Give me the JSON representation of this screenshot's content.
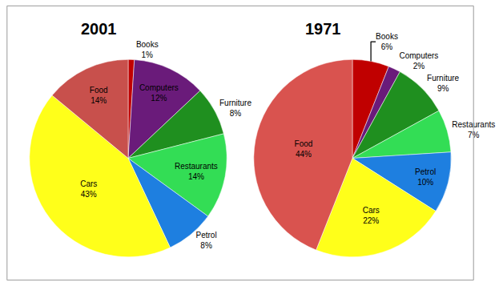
{
  "chart_data": [
    {
      "type": "pie",
      "title": "2001",
      "categories": [
        "Books",
        "Computers",
        "Furniture",
        "Restaurants",
        "Petrol",
        "Cars",
        "Food"
      ],
      "values": [
        1,
        12,
        8,
        14,
        8,
        43,
        14
      ],
      "value_labels": [
        "1%",
        "12%",
        "8%",
        "14%",
        "8%",
        "43%",
        "14%"
      ],
      "colors": [
        "#c00000",
        "#6a1b7a",
        "#1f8f1f",
        "#33dd55",
        "#1e7fe0",
        "#ffff1a",
        "#c8504c"
      ],
      "data_labels": true
    },
    {
      "type": "pie",
      "title": "1971",
      "categories": [
        "Books",
        "Computers",
        "Furniture",
        "Restaurants",
        "Petrol",
        "Cars",
        "Food"
      ],
      "values": [
        6,
        2,
        9,
        7,
        10,
        22,
        44
      ],
      "value_labels": [
        "6%",
        "2%",
        "9%",
        "7%",
        "10%",
        "22%",
        "44%"
      ],
      "colors": [
        "#c00000",
        "#6a1b7a",
        "#1f8f1f",
        "#33dd55",
        "#1e7fe0",
        "#ffff1a",
        "#d9534f"
      ],
      "data_labels": true
    }
  ]
}
